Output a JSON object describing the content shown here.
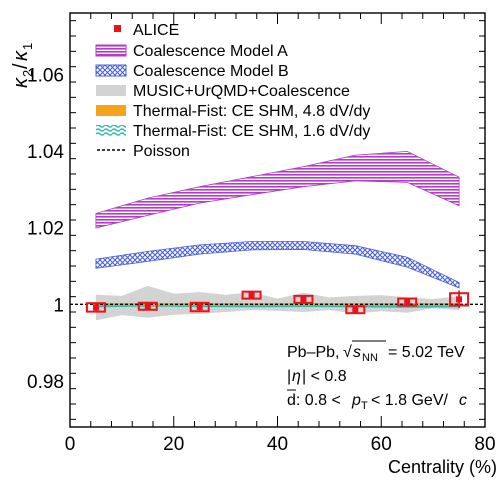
{
  "chart_data": {
    "type": "line",
    "xlabel": "Centrality (%)",
    "ylabel": "κ2/κ1",
    "xlim": [
      0,
      80
    ],
    "ylim": [
      0.968,
      1.076
    ],
    "x_ticks": [
      0,
      20,
      40,
      60,
      80
    ],
    "x_tick_labels": [
      "0",
      "20",
      "40",
      "60",
      "80"
    ],
    "y_ticks": [
      0.98,
      1.0,
      1.02,
      1.04,
      1.06
    ],
    "y_tick_labels": [
      "0.98",
      "1",
      "1.02",
      "1.04",
      "1.06"
    ],
    "grid": false,
    "legend_position": "top-left",
    "legend": [
      {
        "key": "alice",
        "label": "ALICE"
      },
      {
        "key": "coalA",
        "label": "Coalescence Model A"
      },
      {
        "key": "coalB",
        "label": "Coalescence Model B"
      },
      {
        "key": "music",
        "label": "MUSIC+UrQMD+Coalescence"
      },
      {
        "key": "tf48",
        "label": "Thermal-Fist: CE SHM, 4.8 dV/dy"
      },
      {
        "key": "tf16",
        "label": "Thermal-Fist: CE SHM, 1.6 dV/dy"
      },
      {
        "key": "poisson",
        "label": "Poisson"
      }
    ],
    "annotations": [
      "Pb–Pb, √sNN = 5.02 TeV",
      "|η| < 0.8",
      "d̄: 0.8 < pT < 1.8 GeV/c"
    ],
    "series": [
      {
        "name": "ALICE",
        "style": "points",
        "x": [
          5,
          15,
          25,
          35,
          45,
          55,
          65,
          75
        ],
        "y": [
          0.9992,
          0.9995,
          0.9993,
          1.0024,
          1.0013,
          0.9986,
          1.0006,
          1.0013
        ],
        "stat_err": [
          0.001,
          0.0008,
          0.0009,
          0.0009,
          0.0008,
          0.0008,
          0.0008,
          0.0023
        ],
        "sys_err": [
          0.0011,
          0.0008,
          0.0011,
          0.0009,
          0.0009,
          0.0007,
          0.0008,
          0.0016
        ]
      },
      {
        "name": "Coalescence Model A",
        "style": "band",
        "x": [
          5,
          15,
          25,
          35,
          45,
          55,
          65,
          75
        ],
        "y_low": [
          1.0199,
          1.0232,
          1.0264,
          1.0286,
          1.0307,
          1.0322,
          1.0318,
          1.0257
        ],
        "y_high": [
          1.0237,
          1.0277,
          1.0307,
          1.0333,
          1.0359,
          1.0389,
          1.0399,
          1.0332
        ]
      },
      {
        "name": "Coalescence Model B",
        "style": "band",
        "x": [
          5,
          15,
          25,
          35,
          45,
          55,
          65,
          75
        ],
        "y_low": [
          1.0094,
          1.0112,
          1.0131,
          1.0142,
          1.0143,
          1.0131,
          1.0097,
          1.0043
        ],
        "y_high": [
          1.0118,
          1.0138,
          1.0155,
          1.0164,
          1.0164,
          1.0153,
          1.0123,
          1.0057
        ]
      },
      {
        "name": "MUSIC+UrQMD+Coalescence",
        "style": "band",
        "x": [
          5,
          10,
          15,
          20,
          25,
          30,
          35,
          40,
          45,
          50,
          55,
          60,
          65,
          70,
          75
        ],
        "y_low": [
          0.9958,
          0.9972,
          0.9965,
          0.9973,
          0.9975,
          0.998,
          0.9985,
          0.9983,
          0.998,
          0.9985,
          0.9976,
          0.9982,
          0.9978,
          0.999,
          0.9985
        ],
        "y_high": [
          1.0025,
          1.0022,
          1.0048,
          1.0028,
          1.0032,
          1.0025,
          1.0032,
          1.0015,
          1.003,
          1.0018,
          1.0022,
          1.0024,
          1.0018,
          1.0014,
          1.0021
        ]
      },
      {
        "name": "Thermal-Fist: CE SHM, 4.8 dV/dy",
        "style": "band",
        "x": [
          5,
          75
        ],
        "y_low": [
          0.99985,
          0.99985
        ],
        "y_high": [
          1.00005,
          1.00005
        ]
      },
      {
        "name": "Thermal-Fist: CE SHM, 1.6 dV/dy",
        "style": "band",
        "x": [
          5,
          15,
          25,
          35,
          45,
          55,
          65,
          75
        ],
        "y_low": [
          0.9993,
          0.9995,
          0.9994,
          0.9993,
          0.9994,
          0.9993,
          0.9992,
          0.9993
        ],
        "y_high": [
          0.9998,
          0.9999,
          0.9998,
          0.9997,
          0.9998,
          0.9997,
          0.9996,
          0.9997
        ]
      },
      {
        "name": "Poisson",
        "style": "dashed-line",
        "x": [
          0,
          80
        ],
        "y": [
          1.0,
          1.0
        ]
      }
    ]
  },
  "colors": {
    "alice": "#e8141b",
    "coalA": "#b33cc9",
    "coalB": "#4a5fd8",
    "music": "#d3d3d3",
    "tf48": "#f7a21b",
    "tf16": "#2ab8b0",
    "poisson": "#000000"
  }
}
